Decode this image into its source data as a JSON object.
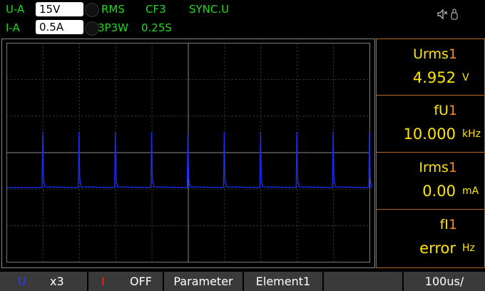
{
  "top_bar": {
    "voltage": {
      "label": "U-A",
      "range": "15V"
    },
    "current": {
      "label": "I-A",
      "range": "0.5A"
    },
    "mode": "RMS",
    "crest_factor": "CF3",
    "sync": "SYNC.U",
    "wiring": "3P3W",
    "update_rate": "0.25S"
  },
  "measurements": [
    {
      "name": "Urms",
      "element": "1",
      "value": "4.952",
      "unit": "V"
    },
    {
      "name": "fU",
      "element": "1",
      "value": "10.000",
      "unit": "kHz"
    },
    {
      "name": "Irms",
      "element": "1",
      "value": "0.00",
      "unit": "mA"
    },
    {
      "name": "fI",
      "element": "1",
      "value": "error",
      "unit": "Hz"
    }
  ],
  "bottom_bar": {
    "u_label": "U",
    "u_scale": "x3",
    "i_label": "I",
    "i_scale": "OFF",
    "menu": "Parameter",
    "element": "Element1",
    "timebase": "100us/"
  }
}
